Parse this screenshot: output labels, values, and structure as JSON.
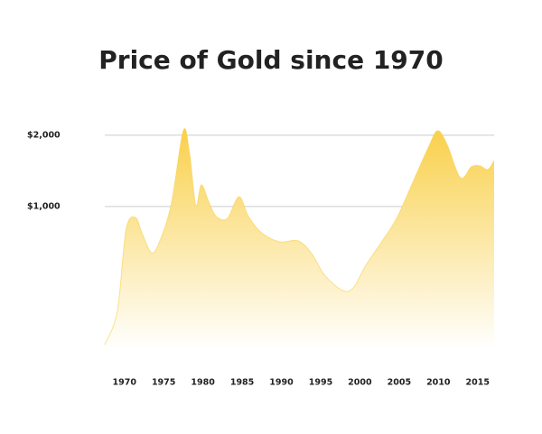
{
  "chart_data": {
    "type": "area",
    "title": "Price of Gold since 1970",
    "x": [
      1967.5,
      1969.1,
      1970.2,
      1971.4,
      1972.3,
      1973.5,
      1974.6,
      1976.0,
      1977.5,
      1978.3,
      1979.1,
      1979.8,
      1980.8,
      1981.7,
      1983.1,
      1984.6,
      1985.8,
      1987.5,
      1989.8,
      1992.1,
      1993.8,
      1995.5,
      1997.8,
      1999.2,
      2000.7,
      2003.0,
      2004.8,
      2007.1,
      2008.8,
      2009.9,
      2011.1,
      2012.8,
      2014.2,
      2015.3,
      2016.3,
      2017.1
    ],
    "values": [
      261,
      362,
      796,
      900,
      763,
      637,
      728,
      1036,
      2090,
      1678,
      1010,
      1234,
      1036,
      908,
      890,
      1100,
      908,
      774,
      710,
      717,
      637,
      514,
      442,
      456,
      561,
      728,
      908,
      1348,
      1800,
      2090,
      1832,
      1324,
      1472,
      1484,
      1434,
      1563
    ],
    "color": "#f9d04b",
    "xlim": [
      1967.5,
      2017.1
    ],
    "xticks": [
      1970,
      1975,
      1980,
      1985,
      1990,
      1995,
      2000,
      2005,
      2010,
      2015
    ],
    "ylim": [
      250,
      2200
    ],
    "yscale": "log",
    "yticks": [
      {
        "value": 1000,
        "label": "$1,000"
      },
      {
        "value": 2000,
        "label": "$2,000"
      }
    ],
    "grid": true
  }
}
